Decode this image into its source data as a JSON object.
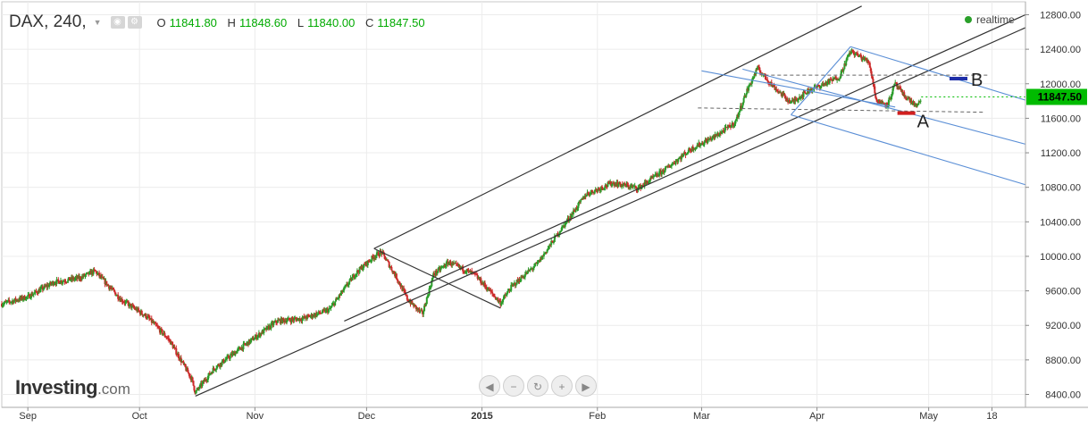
{
  "header": {
    "symbol": "DAX, 240,",
    "ohlc": [
      {
        "k": "O",
        "v": "11841.80"
      },
      {
        "k": "H",
        "v": "11848.60"
      },
      {
        "k": "L",
        "v": "11840.00"
      },
      {
        "k": "C",
        "v": "11847.50"
      }
    ],
    "icons": [
      "eye-icon",
      "gear-icon"
    ],
    "realtime": "realtime"
  },
  "logo": {
    "brand": "Investing",
    "domain": ".com"
  },
  "nav": {
    "buttons": [
      {
        "name": "scroll-left-button",
        "icon": "arrow-left-icon",
        "glyph": "◀"
      },
      {
        "name": "zoom-out-button",
        "icon": "minus-icon",
        "glyph": "−"
      },
      {
        "name": "reset-button",
        "icon": "reset-icon",
        "glyph": "↻"
      },
      {
        "name": "zoom-in-button",
        "icon": "plus-icon",
        "glyph": "+"
      },
      {
        "name": "scroll-right-button",
        "icon": "arrow-right-icon",
        "glyph": "▶"
      }
    ]
  },
  "colors": {
    "up": "#2a9d2a",
    "down": "#cc2a2a",
    "channel": "#333333",
    "fork": "#5b8fd6",
    "last": "#00bb00",
    "markerA": "#d11f1f",
    "markerB": "#1f2fa8"
  },
  "chart_data": {
    "type": "candlestick",
    "title": "DAX, 240,",
    "x_range": [
      "2014-08-25",
      "2015-05-27"
    ],
    "ylim": [
      8250,
      12950
    ],
    "y_ticks": [
      8400,
      8800,
      9200,
      9600,
      10000,
      10400,
      10800,
      11200,
      11600,
      12000,
      12400,
      12800
    ],
    "y_tick_labels": [
      "8400.00",
      "8800.00",
      "9200.00",
      "9600.00",
      "10000.00",
      "10400.00",
      "10800.00",
      "11200.00",
      "11600.00",
      "12000.00",
      "12400.00",
      "12800.00"
    ],
    "x_ticks": [
      {
        "label": "Sep",
        "date": "2014-09-01"
      },
      {
        "label": "Oct",
        "date": "2014-10-01"
      },
      {
        "label": "Nov",
        "date": "2014-11-01"
      },
      {
        "label": "Dec",
        "date": "2014-12-01"
      },
      {
        "label": "2015",
        "date": "2015-01-01",
        "bold": true
      },
      {
        "label": "Feb",
        "date": "2015-02-01"
      },
      {
        "label": "Mar",
        "date": "2015-03-01"
      },
      {
        "label": "Apr",
        "date": "2015-04-01"
      },
      {
        "label": "May",
        "date": "2015-05-01"
      },
      {
        "label": "18",
        "date": "2015-05-18"
      }
    ],
    "last_price": 11847.5,
    "last_price_label": "11847.50",
    "price_path": [
      [
        "2014-08-25",
        9450
      ],
      [
        "2014-09-01",
        9530
      ],
      [
        "2014-09-08",
        9700
      ],
      [
        "2014-09-15",
        9750
      ],
      [
        "2014-09-19",
        9830
      ],
      [
        "2014-09-26",
        9500
      ],
      [
        "2014-10-03",
        9300
      ],
      [
        "2014-10-09",
        9030
      ],
      [
        "2014-10-15",
        8580
      ],
      [
        "2014-10-16",
        8420
      ],
      [
        "2014-10-21",
        8700
      ],
      [
        "2014-10-28",
        8930
      ],
      [
        "2014-11-07",
        9250
      ],
      [
        "2014-11-14",
        9280
      ],
      [
        "2014-11-21",
        9380
      ],
      [
        "2014-11-28",
        9800
      ],
      [
        "2014-12-03",
        10000
      ],
      [
        "2014-12-05",
        10050
      ],
      [
        "2014-12-09",
        9760
      ],
      [
        "2014-12-12",
        9500
      ],
      [
        "2014-12-16",
        9330
      ],
      [
        "2014-12-19",
        9790
      ],
      [
        "2014-12-23",
        9930
      ],
      [
        "2014-12-30",
        9790
      ],
      [
        "2015-01-06",
        9460
      ],
      [
        "2015-01-09",
        9650
      ],
      [
        "2015-01-16",
        9920
      ],
      [
        "2015-01-22",
        10300
      ],
      [
        "2015-01-29",
        10720
      ],
      [
        "2015-02-05",
        10850
      ],
      [
        "2015-02-12",
        10790
      ],
      [
        "2015-02-19",
        11000
      ],
      [
        "2015-02-26",
        11240
      ],
      [
        "2015-03-05",
        11400
      ],
      [
        "2015-03-10",
        11550
      ],
      [
        "2015-03-13",
        11900
      ],
      [
        "2015-03-16",
        12180
      ],
      [
        "2015-03-20",
        11980
      ],
      [
        "2015-03-25",
        11780
      ],
      [
        "2015-03-30",
        11930
      ],
      [
        "2015-04-02",
        11980
      ],
      [
        "2015-04-07",
        12080
      ],
      [
        "2015-04-10",
        12380
      ],
      [
        "2015-04-15",
        12250
      ],
      [
        "2015-04-17",
        11800
      ],
      [
        "2015-04-20",
        11760
      ],
      [
        "2015-04-22",
        12000
      ],
      [
        "2015-04-24",
        11880
      ],
      [
        "2015-04-28",
        11730
      ],
      [
        "2015-04-29",
        11848
      ]
    ],
    "drawings": {
      "channel": [
        {
          "from": [
            "2014-10-16",
            8380
          ],
          "to": [
            "2015-05-27",
            12650
          ]
        },
        {
          "from": [
            "2014-12-03",
            10090
          ],
          "to": [
            "2015-04-13",
            12900
          ]
        },
        {
          "from": [
            "2014-12-03",
            10090
          ],
          "to": [
            "2015-01-06",
            9400
          ]
        },
        {
          "from": [
            "2014-11-25",
            9250
          ],
          "to": [
            "2015-05-27",
            12800
          ]
        }
      ],
      "fork": [
        {
          "from": [
            "2015-03-25",
            11640
          ],
          "to": [
            "2015-05-27",
            10830
          ]
        },
        {
          "from": [
            "2015-04-10",
            12430
          ],
          "to": [
            "2015-05-27",
            11810
          ]
        },
        {
          "from": [
            "2015-03-12",
            12170
          ],
          "to": [
            "2015-05-27",
            11300
          ]
        },
        {
          "from": [
            "2015-03-01",
            12150
          ],
          "to": [
            "2015-04-22",
            11730
          ]
        },
        {
          "from": [
            "2015-03-25",
            11640
          ],
          "to": [
            "2015-04-10",
            12430
          ]
        }
      ],
      "levels": [
        {
          "from": [
            "2015-03-18",
            12100
          ],
          "to": [
            "2015-05-17",
            12100
          ]
        },
        {
          "from": [
            "2015-02-28",
            11720
          ],
          "to": [
            "2015-05-16",
            11670
          ]
        }
      ],
      "markers": [
        {
          "label": "A",
          "date": "2015-04-25",
          "value": 11660
        },
        {
          "label": "B",
          "date": "2015-05-09",
          "value": 12060
        }
      ]
    }
  }
}
